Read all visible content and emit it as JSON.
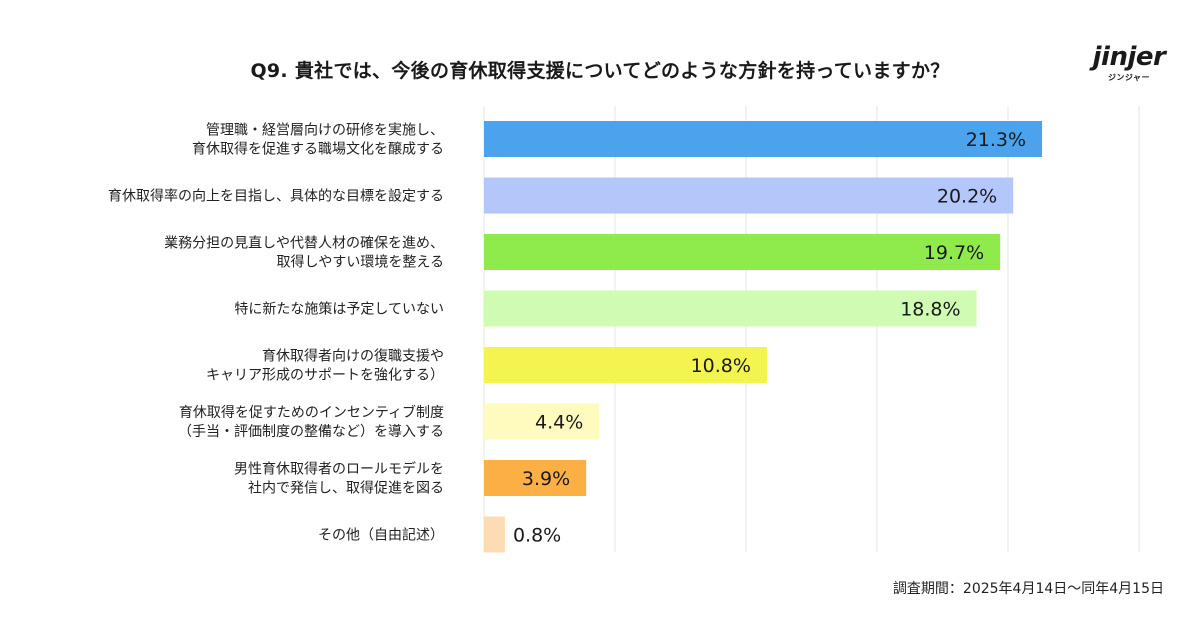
{
  "title": "Q9. 貴社では、今後の育休取得支援についてどのような方針を持っていますか？",
  "logo": {
    "main": "jinjer",
    "sub": "ジンジャー"
  },
  "footnote": "調査期間：2025年4月14日〜同年4月15日",
  "chart_data": {
    "type": "bar",
    "orientation": "horizontal",
    "xlim": [
      0,
      100
    ],
    "grid": true,
    "categories": [
      [
        "管理職・経営層向けの研修を実施し、",
        "育休取得を促進する職場文化を醸成する"
      ],
      [
        "育休取得率の向上を目指し、具体的な目標を設定する"
      ],
      [
        "業務分担の見直しや代替人材の確保を進め、",
        "取得しやすい環境を整える"
      ],
      [
        "特に新たな施策は予定していない"
      ],
      [
        "育休取得者向けの復職支援や",
        "キャリア形成のサポートを強化する）"
      ],
      [
        "育休取得を促すためのインセンティブ制度",
        "（手当・評価制度の整備など）を導入する"
      ],
      [
        "男性育休取得者のロールモデルを",
        "社内で発信し、取得促進を図る"
      ],
      [
        "その他（自由記述）"
      ]
    ],
    "values": [
      21.3,
      20.2,
      19.7,
      18.8,
      10.8,
      4.4,
      3.9,
      0.8
    ],
    "value_labels": [
      "21.3%",
      "20.2%",
      "19.7%",
      "18.8%",
      "10.8%",
      "4.4%",
      "3.9%",
      "0.8%"
    ],
    "colors": [
      "#4BA3EE",
      "#B3C7FB",
      "#8EEB4B",
      "#CFFBB3",
      "#F4F451",
      "#FFFBBE",
      "#FBAF45",
      "#FDDCB3"
    ]
  }
}
